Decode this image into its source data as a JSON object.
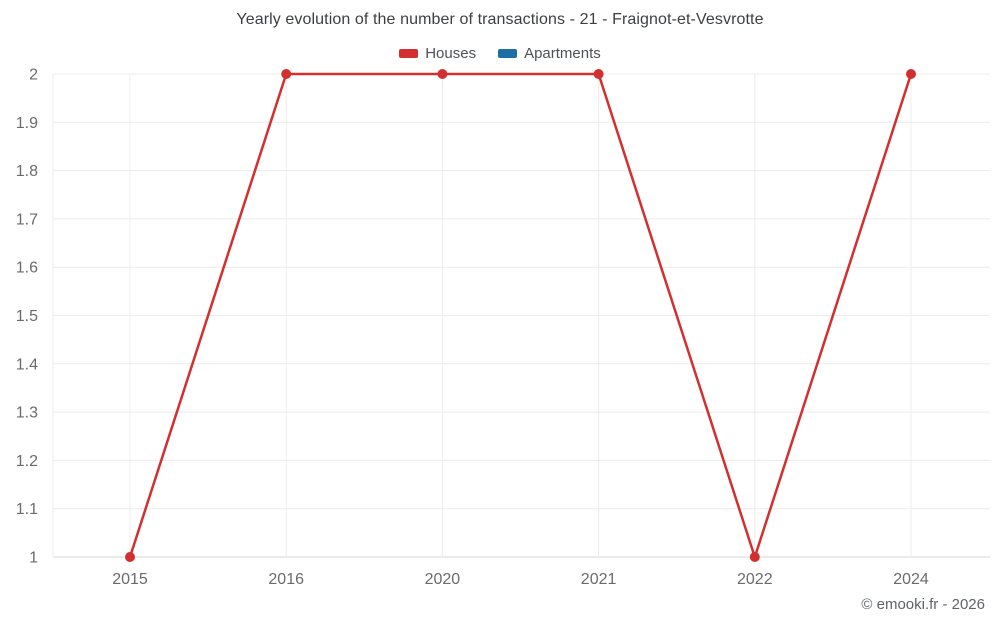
{
  "title": "Yearly evolution of the number of transactions - 21 - Fraignot-et-Vesvrotte",
  "legend": [
    {
      "label": "Houses",
      "color": "#d32f2f"
    },
    {
      "label": "Apartments",
      "color": "#1c6ea4"
    }
  ],
  "footer": "© emooki.fr - 2026",
  "colors": {
    "houses": "#d32f2f",
    "apartments": "#1c6ea4",
    "gridline": "#ececec",
    "axis_line": "#d7d7d7",
    "tick_label": "#6b6b6b"
  },
  "chart_data": {
    "type": "line",
    "x": [
      "2015",
      "2016",
      "2020",
      "2021",
      "2022",
      "2024"
    ],
    "series": [
      {
        "name": "Houses",
        "color": "#d32f2f",
        "values": [
          1,
          2,
          2,
          2,
          1,
          2
        ]
      },
      {
        "name": "Apartments",
        "color": "#1c6ea4",
        "values": []
      }
    ],
    "title": "Yearly evolution of the number of transactions - 21 - Fraignot-et-Vesvrotte",
    "xlabel": "",
    "ylabel": "",
    "ylim": [
      1,
      2
    ],
    "yticks": [
      1,
      1.1,
      1.2,
      1.3,
      1.4,
      1.5,
      1.6,
      1.7,
      1.8,
      1.9,
      2
    ],
    "grid": true,
    "legend_position": "top"
  }
}
